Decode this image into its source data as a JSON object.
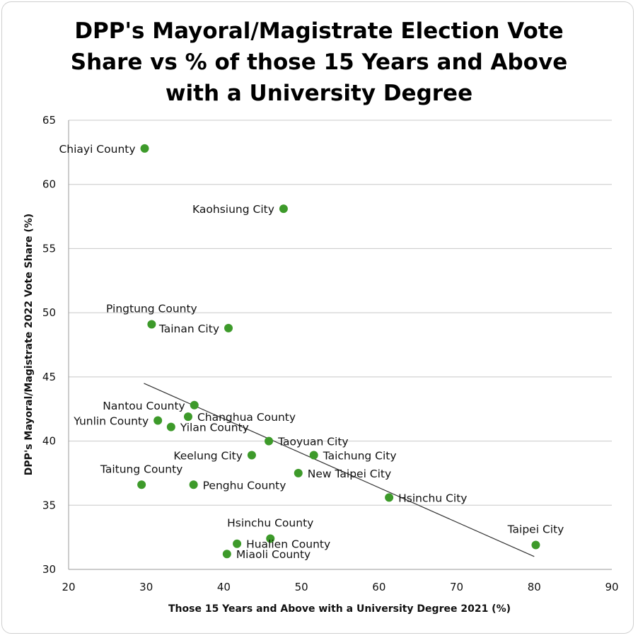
{
  "chart_data": {
    "type": "scatter",
    "title_lines": [
      "DPP's Mayoral/Magistrate Election Vote",
      "Share vs % of those 15 Years and Above",
      "with a University Degree"
    ],
    "xlabel": "Those 15 Years and Above with a University Degree 2021 (%)",
    "ylabel": "DPP's Mayoral/Magistrate 2022 Vote Share (%)",
    "xlim": [
      20,
      90
    ],
    "ylim": [
      30,
      65
    ],
    "xticks": [
      20,
      30,
      40,
      50,
      60,
      70,
      80,
      90
    ],
    "yticks": [
      30,
      35,
      40,
      45,
      50,
      55,
      60,
      65
    ],
    "grid": "horizontal",
    "point_color": "#3d9a2a",
    "trendline": {
      "x": [
        29.7,
        80
      ],
      "y": [
        44.5,
        31.0
      ],
      "color": "#333333"
    },
    "points": [
      {
        "label": "Chiayi County",
        "x": 29.8,
        "y": 62.8,
        "anchor": "left"
      },
      {
        "label": "Kaohsiung City",
        "x": 47.7,
        "y": 58.1,
        "anchor": "left"
      },
      {
        "label": "Pingtung County",
        "x": 30.7,
        "y": 49.1,
        "anchor": "above"
      },
      {
        "label": "Tainan City",
        "x": 40.6,
        "y": 48.8,
        "anchor": "left"
      },
      {
        "label": "Nantou County",
        "x": 36.2,
        "y": 42.8,
        "anchor": "left"
      },
      {
        "label": "Changhua County",
        "x": 35.4,
        "y": 41.9,
        "anchor": "right"
      },
      {
        "label": "Yunlin County",
        "x": 31.5,
        "y": 41.6,
        "anchor": "left"
      },
      {
        "label": "Yilan County",
        "x": 33.2,
        "y": 41.1,
        "anchor": "right"
      },
      {
        "label": "Taoyuan City",
        "x": 45.8,
        "y": 40.0,
        "anchor": "right"
      },
      {
        "label": "Keelung City",
        "x": 43.6,
        "y": 38.9,
        "anchor": "left"
      },
      {
        "label": "Taichung City",
        "x": 51.6,
        "y": 38.9,
        "anchor": "right"
      },
      {
        "label": "New Taipei City",
        "x": 49.6,
        "y": 37.5,
        "anchor": "right"
      },
      {
        "label": "Taitung County",
        "x": 29.4,
        "y": 36.6,
        "anchor": "above"
      },
      {
        "label": "Penghu County",
        "x": 36.1,
        "y": 36.6,
        "anchor": "right"
      },
      {
        "label": "Hsinchu City",
        "x": 61.3,
        "y": 35.6,
        "anchor": "right"
      },
      {
        "label": "Hsinchu County",
        "x": 46.0,
        "y": 32.4,
        "anchor": "above"
      },
      {
        "label": "Hualien County",
        "x": 41.7,
        "y": 32.0,
        "anchor": "right"
      },
      {
        "label": "Miaoli County",
        "x": 40.4,
        "y": 31.2,
        "anchor": "right"
      },
      {
        "label": "Taipei City",
        "x": 80.2,
        "y": 31.9,
        "anchor": "above"
      }
    ]
  }
}
